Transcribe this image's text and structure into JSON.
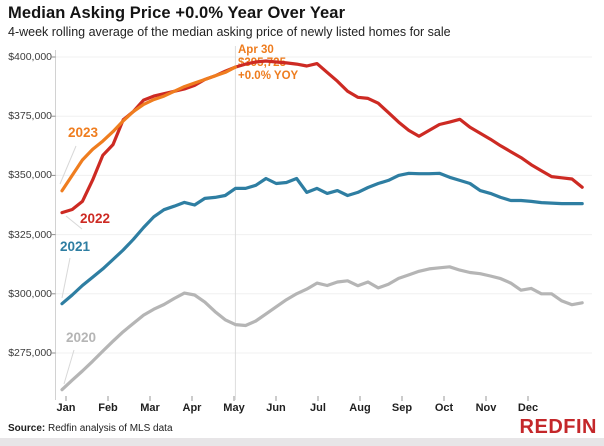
{
  "header": {
    "title": "Median Asking Price +0.0% Year Over Year",
    "subtitle": "4-week rolling average of the median asking price of newly listed homes for sale"
  },
  "annotation": {
    "line1": "Apr 30",
    "line2": "$395,725",
    "line3": "+0.0% YOY",
    "color": "#ee7c1e"
  },
  "footer": {
    "source_label": "Source:",
    "source_text": " Redfin analysis of MLS data",
    "logo": "REDFIN",
    "logo_color": "#c4272a"
  },
  "chart_data": {
    "type": "line",
    "title": "Median Asking Price +0.0% Year Over Year",
    "subtitle": "4-week rolling average of the median asking price of newly listed homes for sale",
    "xlabel": "",
    "ylabel": "",
    "x_unit": "week of year (weekly points, Jan-Dec)",
    "ylim": [
      258000,
      402000
    ],
    "grid": "faint horizontal lines at y ticks; one vertical line at Apr 30",
    "legend_position": "inline year labels near each line start",
    "months": [
      "Jan",
      "Feb",
      "Mar",
      "Apr",
      "May",
      "Jun",
      "Jul",
      "Aug",
      "Sep",
      "Oct",
      "Nov",
      "Dec"
    ],
    "y_ticks": [
      "$400,000",
      "$375,000",
      "$350,000",
      "$325,000",
      "$300,000",
      "$275,000"
    ],
    "y_tick_values": [
      400000,
      375000,
      350000,
      325000,
      300000,
      275000
    ],
    "annotation_at_end_of_2023": {
      "date": "Apr 30",
      "value": 395725,
      "yoy": "+0.0% YOY"
    },
    "series": [
      {
        "name": "2020",
        "color": "#b5b5b5",
        "values": [
          259500,
          263500,
          267400,
          271500,
          275800,
          280000,
          284000,
          287500,
          291000,
          293500,
          295500,
          298000,
          300300,
          299500,
          296500,
          292500,
          289000,
          287000,
          286600,
          288500,
          291500,
          294500,
          297500,
          300000,
          302000,
          304500,
          303500,
          305000,
          305500,
          303400,
          305000,
          302500,
          304000,
          306500,
          308000,
          309500,
          310500,
          311000,
          311400,
          310000,
          309000,
          308500,
          307500,
          306400,
          304500,
          301500,
          302300,
          300000,
          300000,
          297000,
          295400,
          296200
        ]
      },
      {
        "name": "2021",
        "color": "#2e7ea2",
        "values": [
          295800,
          299500,
          303500,
          307000,
          310500,
          314500,
          318500,
          323000,
          328000,
          332500,
          335500,
          337000,
          338600,
          337500,
          340300,
          340700,
          341500,
          344500,
          344500,
          345800,
          348700,
          346600,
          347000,
          348700,
          342800,
          344500,
          342400,
          343600,
          341500,
          342800,
          344900,
          346600,
          347900,
          350000,
          350900,
          350700,
          350700,
          350900,
          349200,
          347900,
          346600,
          343600,
          342400,
          340700,
          339400,
          339400,
          339000,
          338500,
          338300,
          338100,
          338100,
          338100
        ]
      },
      {
        "name": "2022",
        "color": "#cd2a23",
        "values": [
          334300,
          335600,
          339000,
          348000,
          358500,
          363000,
          373500,
          377000,
          381800,
          383500,
          384500,
          385500,
          386500,
          388000,
          390500,
          392000,
          394000,
          395725,
          397000,
          397900,
          398300,
          397900,
          397500,
          397000,
          396200,
          397200,
          393500,
          389800,
          385500,
          383000,
          382500,
          380500,
          376500,
          372500,
          369000,
          366500,
          369000,
          371500,
          372500,
          373700,
          370300,
          367800,
          365300,
          362500,
          360000,
          357500,
          354500,
          352000,
          349500,
          349000,
          348500,
          345000
        ]
      },
      {
        "name": "2023",
        "color": "#ef7d1f",
        "values": [
          343500,
          350000,
          356500,
          361000,
          364500,
          368500,
          373000,
          377000,
          380000,
          382000,
          383500,
          385500,
          387500,
          389000,
          390500,
          392000,
          393500,
          395725
        ]
      }
    ]
  }
}
